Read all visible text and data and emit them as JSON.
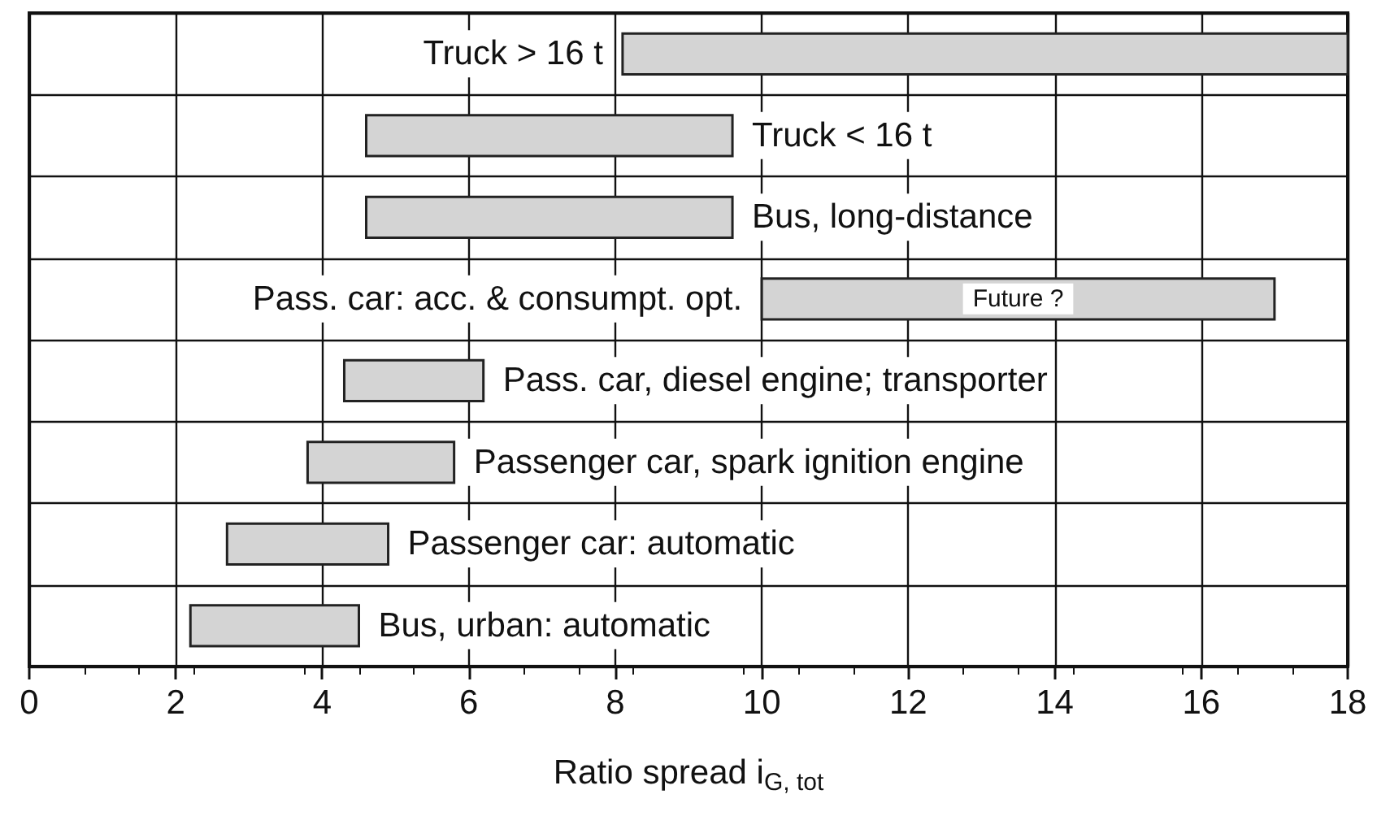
{
  "chart_data": {
    "type": "bar",
    "orientation": "horizontal",
    "xlabel": "Ratio spread i$_{G, tot}$",
    "categories": [
      "Truck > 16 t",
      "Truck < 16 t",
      "Bus, long-distance",
      "Pass. car: acc. & consumpt. opt.",
      "Pass. car, diesel engine; transporter",
      "Passenger car, spark ignition engine",
      "Passenger car: automatic",
      "Bus, urban: automatic"
    ],
    "base": [
      8.1,
      4.6,
      4.6,
      10,
      4.3,
      3.8,
      2.7,
      2.2
    ],
    "values": [
      9.9,
      5,
      5,
      7,
      1.9,
      2,
      2.2,
      2.3
    ],
    "color": "#d4d4d4",
    "xlim": [
      0,
      18
    ],
    "xticks": [
      0,
      2,
      4,
      6,
      8,
      10,
      12,
      14,
      16,
      18
    ],
    "grid": true,
    "tick_labels": "x",
    "annotations": [
      "Future ?"
    ]
  }
}
